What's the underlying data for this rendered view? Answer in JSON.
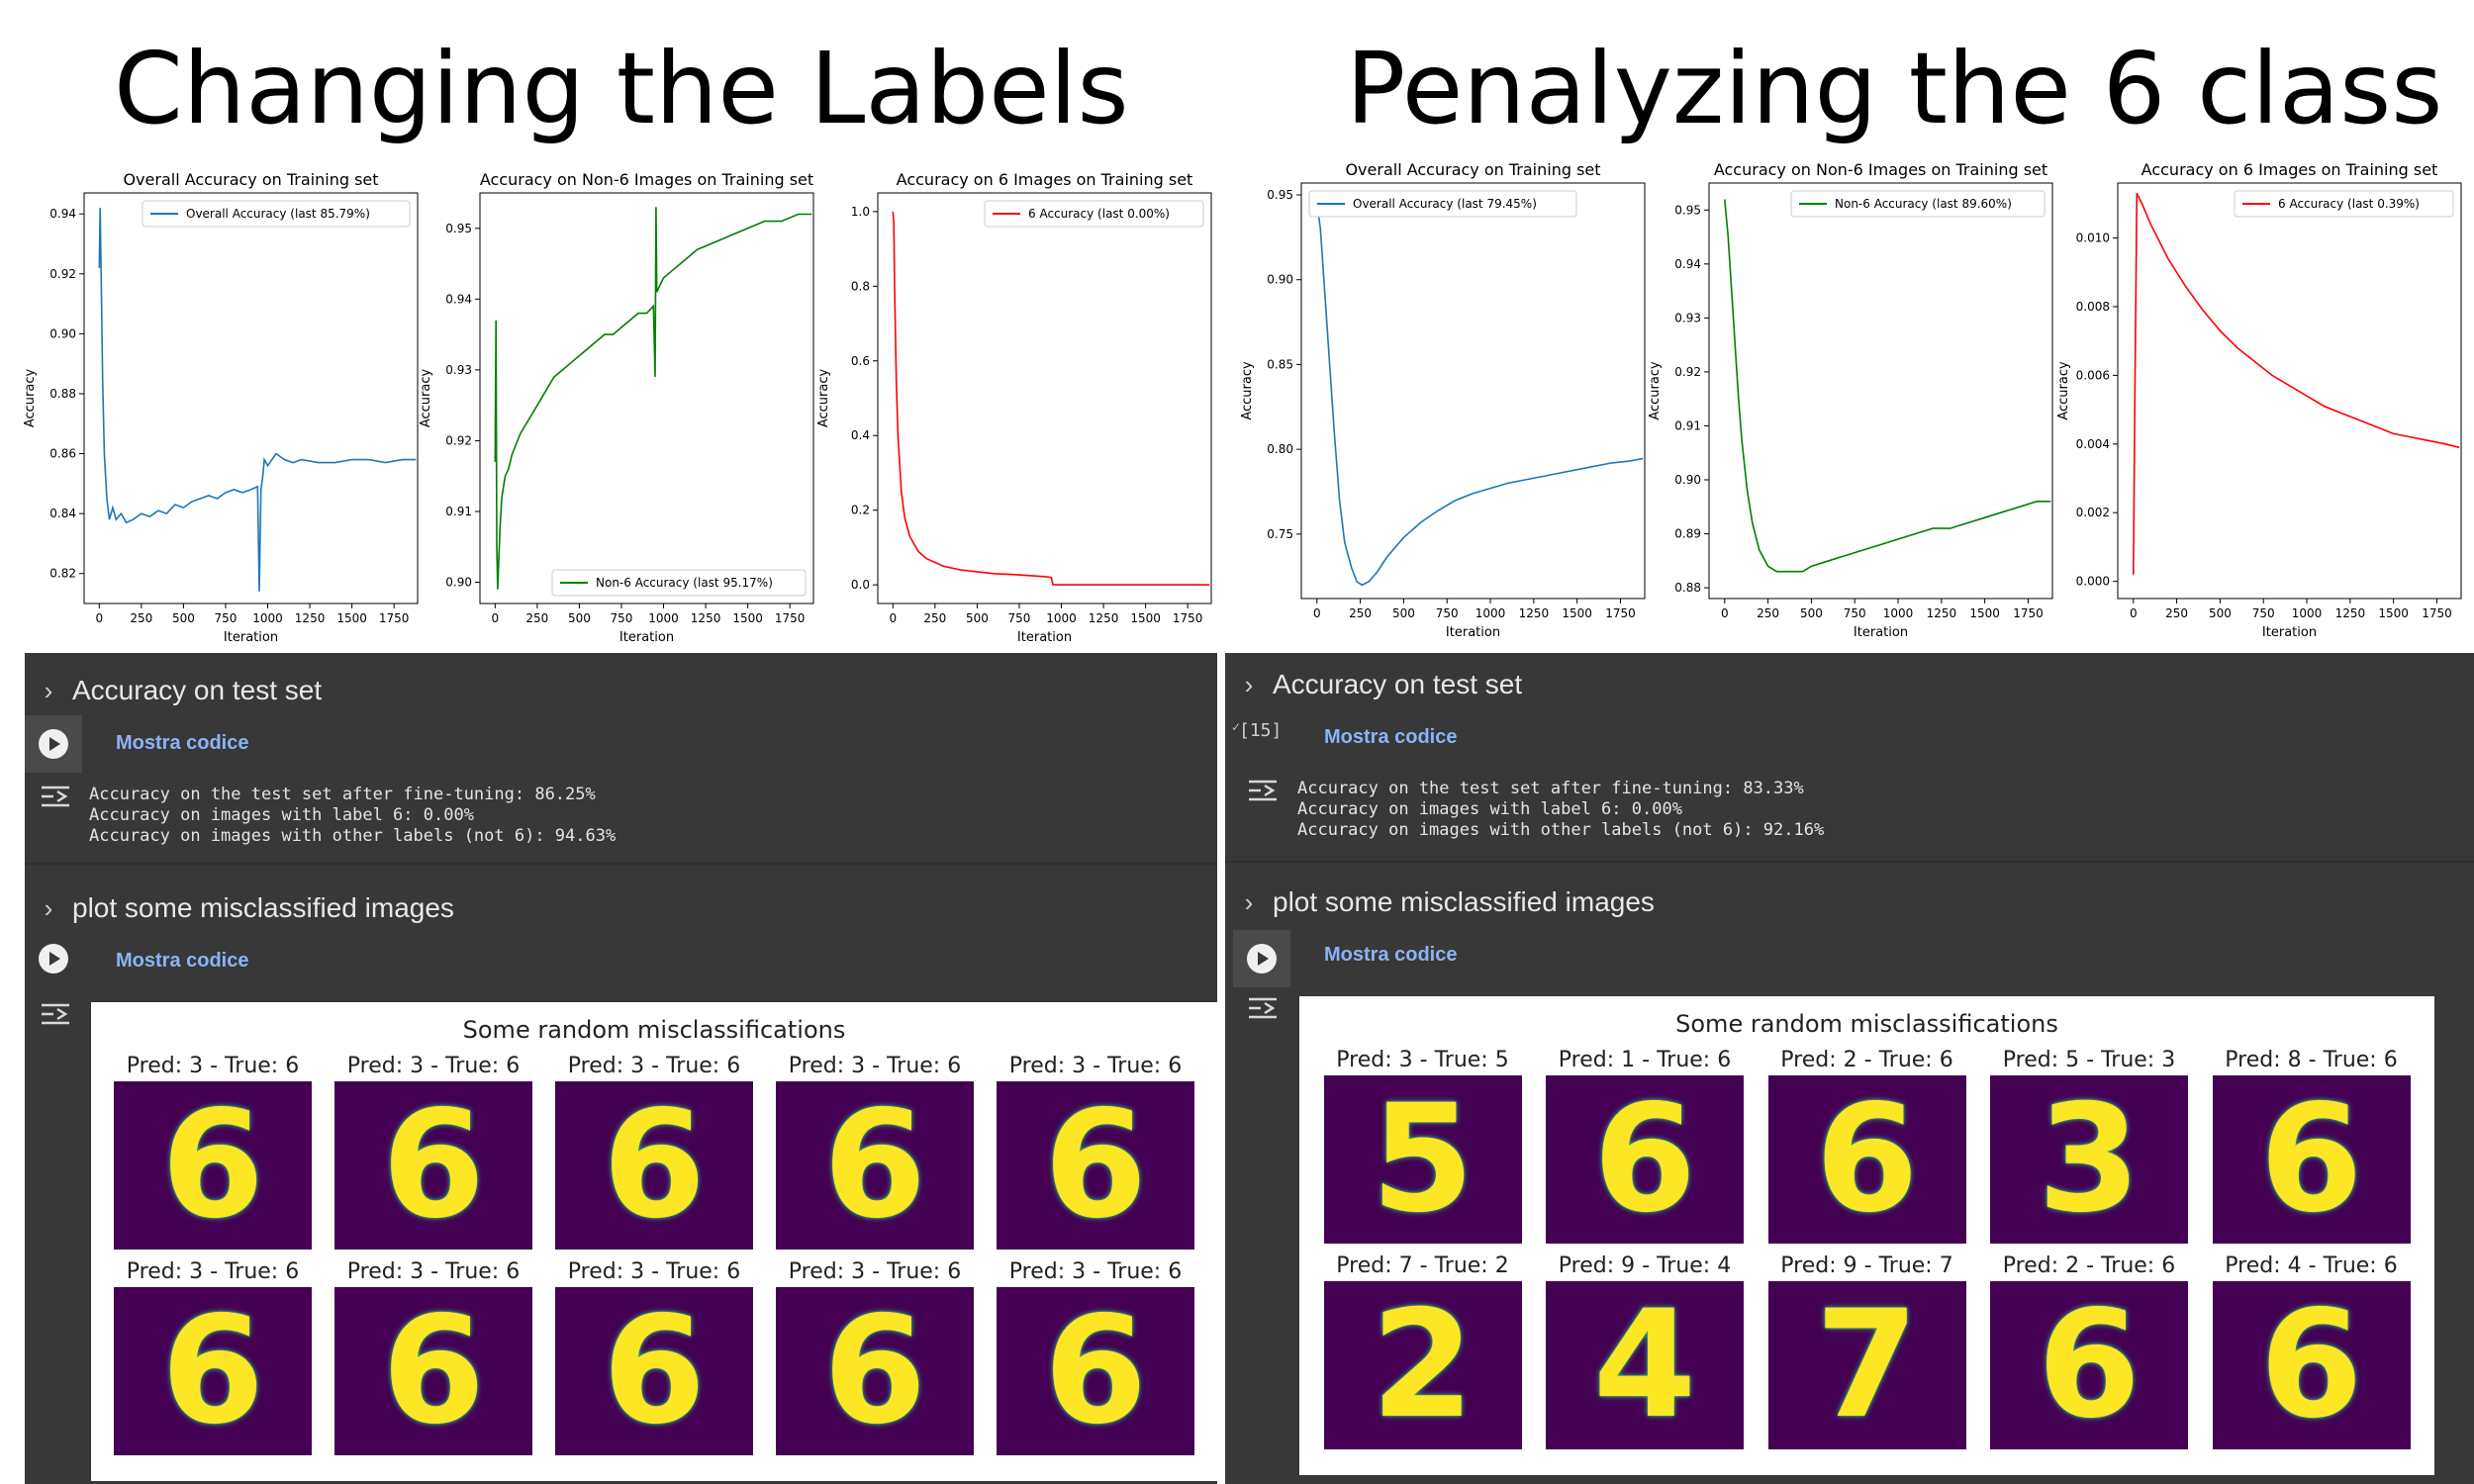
{
  "left": {
    "big_title": "Changing the Labels",
    "plots": [
      {
        "title": "Overall Accuracy on Training set",
        "legend": "Overall Accuracy (last 85.79%)",
        "ylabel": "Accuracy",
        "xlabel": "Iteration",
        "color": "#1f77b4",
        "legend_pos": "top-right",
        "x_ticks": [
          "0",
          "250",
          "500",
          "750",
          "1000",
          "1250",
          "1500",
          "1750"
        ],
        "y_ticks": [
          "0.82",
          "0.84",
          "0.86",
          "0.88",
          "0.90",
          "0.92",
          "0.94"
        ]
      },
      {
        "title": "Accuracy on Non-6 Images on Training set",
        "legend": "Non-6 Accuracy (last 95.17%)",
        "ylabel": "Accuracy",
        "xlabel": "Iteration",
        "color": "#008000",
        "legend_pos": "bottom-right",
        "x_ticks": [
          "0",
          "250",
          "500",
          "750",
          "1000",
          "1250",
          "1500",
          "1750"
        ],
        "y_ticks": [
          "0.90",
          "0.91",
          "0.92",
          "0.93",
          "0.94",
          "0.95"
        ]
      },
      {
        "title": "Accuracy on 6 Images on Training set",
        "legend": "6 Accuracy (last 0.00%)",
        "ylabel": "Accuracy",
        "xlabel": "Iteration",
        "color": "#ff0000",
        "legend_pos": "top-right",
        "x_ticks": [
          "0",
          "250",
          "500",
          "750",
          "1000",
          "1250",
          "1500",
          "1750"
        ],
        "y_ticks": [
          "0.0",
          "0.2",
          "0.4",
          "0.6",
          "0.8",
          "1.0"
        ]
      }
    ],
    "section1": "Accuracy on test set",
    "mostra1": "Mostra codice",
    "output1": [
      "Accuracy on the test set after fine-tuning: 86.25%",
      "Accuracy on images with label 6: 0.00%",
      "Accuracy on images with other labels (not 6): 94.63%"
    ],
    "section2": "plot some misclassified images",
    "mostra2": "Mostra codice",
    "mis_title": "Some random misclassifications",
    "mis_labels": [
      "Pred: 3 - True: 6",
      "Pred: 3 - True: 6",
      "Pred: 3 - True: 6",
      "Pred: 3 - True: 6",
      "Pred: 3 - True: 6",
      "Pred: 3 - True: 6",
      "Pred: 3 - True: 6",
      "Pred: 3 - True: 6",
      "Pred: 3 - True: 6",
      "Pred: 3 - True: 6"
    ],
    "mis_digits": [
      "6",
      "6",
      "6",
      "6",
      "6",
      "6",
      "6",
      "6",
      "6",
      "6"
    ]
  },
  "right": {
    "big_title": "Penalyzing the 6 class",
    "plots": [
      {
        "title": "Overall Accuracy on Training set",
        "legend": "Overall Accuracy (last 79.45%)",
        "ylabel": "Accuracy",
        "xlabel": "Iteration",
        "color": "#1f77b4",
        "legend_pos": "top-left",
        "x_ticks": [
          "0",
          "250",
          "500",
          "750",
          "1000",
          "1250",
          "1500",
          "1750"
        ],
        "y_ticks": [
          "0.75",
          "0.80",
          "0.85",
          "0.90",
          "0.95"
        ]
      },
      {
        "title": "Accuracy on Non-6 Images on Training set",
        "legend": "Non-6 Accuracy (last 89.60%)",
        "ylabel": "Accuracy",
        "xlabel": "Iteration",
        "color": "#008000",
        "legend_pos": "top-right",
        "x_ticks": [
          "0",
          "250",
          "500",
          "750",
          "1000",
          "1250",
          "1500",
          "1750"
        ],
        "y_ticks": [
          "0.88",
          "0.89",
          "0.90",
          "0.91",
          "0.92",
          "0.93",
          "0.94",
          "0.95"
        ]
      },
      {
        "title": "Accuracy on 6 Images on Training set",
        "legend": "6 Accuracy (last 0.39%)",
        "ylabel": "Accuracy",
        "xlabel": "Iteration",
        "color": "#ff0000",
        "legend_pos": "top-right",
        "x_ticks": [
          "0",
          "250",
          "500",
          "750",
          "1000",
          "1250",
          "1500",
          "1750"
        ],
        "y_ticks": [
          "0.000",
          "0.002",
          "0.004",
          "0.006",
          "0.008",
          "0.010"
        ]
      }
    ],
    "exec_count": "[15]",
    "section1": "Accuracy on test set",
    "mostra1": "Mostra codice",
    "output1": [
      "Accuracy on the test set after fine-tuning: 83.33%",
      "Accuracy on images with label 6: 0.00%",
      "Accuracy on images with other labels (not 6): 92.16%"
    ],
    "section2": "plot some misclassified images",
    "mostra2": "Mostra codice",
    "mis_title": "Some random misclassifications",
    "mis_labels": [
      "Pred: 3 - True: 5",
      "Pred: 1 - True: 6",
      "Pred: 2 - True: 6",
      "Pred: 5 - True: 3",
      "Pred: 8 - True: 6",
      "Pred: 7 - True: 2",
      "Pred: 9 - True: 4",
      "Pred: 9 - True: 7",
      "Pred: 2 - True: 6",
      "Pred: 4 - True: 6"
    ],
    "mis_digits": [
      "5",
      "6",
      "6",
      "3",
      "6",
      "2",
      "4",
      "7",
      "6",
      "6"
    ]
  },
  "chart_data": [
    {
      "type": "line",
      "title": "Overall Accuracy on Training set",
      "xlabel": "Iteration",
      "ylabel": "Accuracy",
      "xlim": [
        -90,
        1890
      ],
      "ylim": [
        0.81,
        0.947
      ],
      "grid": false,
      "legend": "top-right",
      "series": [
        {
          "name": "Overall Accuracy (last 85.79%)",
          "x": [
            0,
            5,
            10,
            20,
            30,
            45,
            60,
            80,
            100,
            130,
            160,
            200,
            250,
            300,
            350,
            400,
            450,
            500,
            550,
            600,
            650,
            700,
            750,
            800,
            850,
            900,
            940,
            950,
            960,
            970,
            980,
            1000,
            1050,
            1100,
            1150,
            1200,
            1300,
            1400,
            1500,
            1600,
            1700,
            1800,
            1880
          ],
          "y": [
            0.922,
            0.942,
            0.925,
            0.885,
            0.86,
            0.845,
            0.838,
            0.842,
            0.838,
            0.84,
            0.837,
            0.838,
            0.84,
            0.839,
            0.841,
            0.84,
            0.843,
            0.842,
            0.844,
            0.845,
            0.846,
            0.845,
            0.847,
            0.848,
            0.847,
            0.848,
            0.849,
            0.814,
            0.848,
            0.852,
            0.858,
            0.856,
            0.86,
            0.858,
            0.857,
            0.858,
            0.857,
            0.857,
            0.858,
            0.858,
            0.857,
            0.858,
            0.858
          ]
        }
      ]
    },
    {
      "type": "line",
      "title": "Accuracy on Non-6 Images on Training set",
      "xlabel": "Iteration",
      "ylabel": "Accuracy",
      "xlim": [
        -90,
        1890
      ],
      "ylim": [
        0.897,
        0.955
      ],
      "grid": false,
      "legend": "bottom-right",
      "series": [
        {
          "name": "Non-6 Accuracy (last 95.17%)",
          "x": [
            0,
            5,
            10,
            15,
            20,
            30,
            40,
            60,
            80,
            100,
            150,
            200,
            250,
            300,
            350,
            400,
            450,
            500,
            550,
            600,
            650,
            700,
            750,
            800,
            850,
            900,
            940,
            950,
            955,
            960,
            980,
            1000,
            1050,
            1100,
            1150,
            1200,
            1300,
            1400,
            1500,
            1600,
            1700,
            1800,
            1880
          ],
          "y": [
            0.917,
            0.937,
            0.905,
            0.899,
            0.902,
            0.908,
            0.912,
            0.915,
            0.916,
            0.918,
            0.921,
            0.923,
            0.925,
            0.927,
            0.929,
            0.93,
            0.931,
            0.932,
            0.933,
            0.934,
            0.935,
            0.935,
            0.936,
            0.937,
            0.938,
            0.938,
            0.939,
            0.929,
            0.953,
            0.941,
            0.942,
            0.943,
            0.944,
            0.945,
            0.946,
            0.947,
            0.948,
            0.949,
            0.95,
            0.951,
            0.951,
            0.952,
            0.952
          ]
        }
      ]
    },
    {
      "type": "line",
      "title": "Accuracy on 6 Images on Training set",
      "xlabel": "Iteration",
      "ylabel": "Accuracy",
      "xlim": [
        -90,
        1890
      ],
      "ylim": [
        -0.05,
        1.05
      ],
      "grid": false,
      "legend": "top-right",
      "series": [
        {
          "name": "6 Accuracy (last 0.00%)",
          "x": [
            0,
            5,
            10,
            20,
            30,
            50,
            70,
            100,
            150,
            200,
            250,
            300,
            400,
            500,
            600,
            700,
            800,
            900,
            940,
            950,
            1000,
            1200,
            1400,
            1600,
            1880
          ],
          "y": [
            1.0,
            0.97,
            0.8,
            0.55,
            0.4,
            0.25,
            0.18,
            0.13,
            0.09,
            0.07,
            0.06,
            0.05,
            0.04,
            0.035,
            0.03,
            0.028,
            0.025,
            0.022,
            0.02,
            0.0,
            0.0,
            0.0,
            0.0,
            0.0,
            0.0
          ]
        }
      ]
    },
    {
      "type": "line",
      "title": "Overall Accuracy on Training set",
      "xlabel": "Iteration",
      "ylabel": "Accuracy",
      "xlim": [
        -90,
        1890
      ],
      "ylim": [
        0.712,
        0.957
      ],
      "grid": false,
      "legend": "top-left",
      "series": [
        {
          "name": "Overall Accuracy (last 79.45%)",
          "x": [
            0,
            20,
            40,
            60,
            80,
            100,
            130,
            160,
            200,
            230,
            260,
            300,
            350,
            400,
            500,
            600,
            700,
            800,
            900,
            1000,
            1100,
            1200,
            1300,
            1400,
            1500,
            1600,
            1700,
            1800,
            1880
          ],
          "y": [
            0.945,
            0.93,
            0.9,
            0.87,
            0.84,
            0.81,
            0.77,
            0.745,
            0.73,
            0.722,
            0.72,
            0.722,
            0.728,
            0.736,
            0.748,
            0.757,
            0.764,
            0.77,
            0.774,
            0.777,
            0.78,
            0.782,
            0.784,
            0.786,
            0.788,
            0.79,
            0.792,
            0.793,
            0.7945
          ]
        }
      ]
    },
    {
      "type": "line",
      "title": "Accuracy on Non-6 Images on Training set",
      "xlabel": "Iteration",
      "ylabel": "Accuracy",
      "xlim": [
        -90,
        1890
      ],
      "ylim": [
        0.878,
        0.955
      ],
      "grid": false,
      "legend": "top-right",
      "series": [
        {
          "name": "Non-6 Accuracy (last 89.60%)",
          "x": [
            0,
            20,
            40,
            60,
            80,
            100,
            130,
            160,
            200,
            250,
            300,
            350,
            400,
            450,
            500,
            600,
            700,
            800,
            900,
            1000,
            1100,
            1200,
            1300,
            1400,
            1500,
            1600,
            1700,
            1800,
            1880
          ],
          "y": [
            0.952,
            0.945,
            0.935,
            0.925,
            0.915,
            0.907,
            0.898,
            0.892,
            0.887,
            0.884,
            0.883,
            0.883,
            0.883,
            0.883,
            0.884,
            0.885,
            0.886,
            0.887,
            0.888,
            0.889,
            0.89,
            0.891,
            0.891,
            0.892,
            0.893,
            0.894,
            0.895,
            0.896,
            0.896
          ]
        }
      ]
    },
    {
      "type": "line",
      "title": "Accuracy on 6 Images on Training set",
      "xlabel": "Iteration",
      "ylabel": "Accuracy",
      "xlim": [
        -90,
        1890
      ],
      "ylim": [
        -0.0005,
        0.0116
      ],
      "grid": false,
      "legend": "top-right",
      "series": [
        {
          "name": "6 Accuracy (last 0.39%)",
          "x": [
            0,
            10,
            20,
            50,
            100,
            150,
            200,
            300,
            400,
            500,
            600,
            700,
            800,
            900,
            1000,
            1100,
            1200,
            1300,
            1400,
            1500,
            1600,
            1700,
            1800,
            1880
          ],
          "y": [
            0.0002,
            0.006,
            0.0113,
            0.011,
            0.0104,
            0.0099,
            0.0094,
            0.0086,
            0.0079,
            0.0073,
            0.0068,
            0.0064,
            0.006,
            0.0057,
            0.0054,
            0.0051,
            0.0049,
            0.0047,
            0.0045,
            0.0043,
            0.0042,
            0.0041,
            0.004,
            0.0039
          ]
        }
      ]
    }
  ]
}
